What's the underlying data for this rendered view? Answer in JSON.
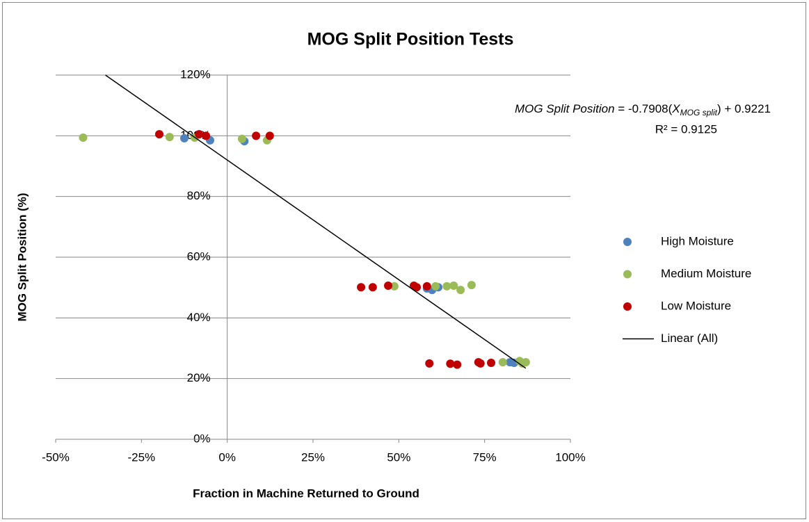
{
  "chart_data": {
    "type": "scatter",
    "title": "MOG Split Position Tests",
    "x_label": "Fraction in Machine Returned to Ground",
    "y_label": "MOG Split Position (%)",
    "equation": {
      "italic_name": "MOG Split Position",
      "eq": " = -0.7908(",
      "var": "X",
      "sub": "MOG split",
      "tail": ") + 0.9221",
      "r2": "R² = 0.9125"
    },
    "xlim": [
      -50,
      100
    ],
    "ylim": [
      0,
      120
    ],
    "xticks": [
      {
        "value": -50,
        "label": "-50%"
      },
      {
        "value": -25,
        "label": "-25%"
      },
      {
        "value": 0,
        "label": "0%"
      },
      {
        "value": 25,
        "label": "25%"
      },
      {
        "value": 50,
        "label": "50%"
      },
      {
        "value": 75,
        "label": "75%"
      },
      {
        "value": 100,
        "label": "100%"
      }
    ],
    "yticks": [
      {
        "value": 0,
        "label": "0%"
      },
      {
        "value": 20,
        "label": "20%"
      },
      {
        "value": 40,
        "label": "40%"
      },
      {
        "value": 60,
        "label": "60%"
      },
      {
        "value": 80,
        "label": "80%"
      },
      {
        "value": 100,
        "label": "100%"
      },
      {
        "value": 120,
        "label": "120%"
      }
    ],
    "grid": true,
    "legend": "right",
    "series": [
      {
        "name": "High Moisture",
        "color": "#4f81bd",
        "x": [
          -12.5,
          -5,
          5,
          58.2,
          59.7,
          61.5,
          82.4,
          83.6
        ],
        "values": [
          99.2,
          98.5,
          98.2,
          49.7,
          49.2,
          50.1,
          25.4,
          25.2
        ]
      },
      {
        "name": "Medium Moisture",
        "color": "#9bbb59",
        "x": [
          -42,
          -16.8,
          -9.5,
          4.3,
          11.6,
          48.7,
          60.7,
          64,
          66,
          68,
          71.2,
          80.3,
          85.2,
          86,
          87
        ],
        "values": [
          99.4,
          99.6,
          99.4,
          99,
          98.5,
          50.4,
          50.4,
          50.4,
          50.6,
          49.2,
          50.8,
          25.4,
          25.8,
          25,
          25.4
        ]
      },
      {
        "name": "Low Moisture",
        "color": "#c00000",
        "x": [
          -19.8,
          -8.2,
          -6.2,
          8.4,
          12.4,
          39,
          42.4,
          46.9,
          54.4,
          55.2,
          58.2,
          58.9,
          65,
          67,
          73.2,
          73.8,
          76.9
        ],
        "values": [
          100.5,
          100.5,
          100,
          100,
          100,
          50.1,
          50.1,
          50.6,
          50.6,
          50.1,
          50.4,
          25,
          24.9,
          24.6,
          25.4,
          25,
          25.2
        ]
      }
    ],
    "trendline": {
      "name": "Linear (All)",
      "color": "#000000",
      "x": [
        -35.5,
        87
      ],
      "values": [
        120,
        23.4
      ]
    }
  }
}
